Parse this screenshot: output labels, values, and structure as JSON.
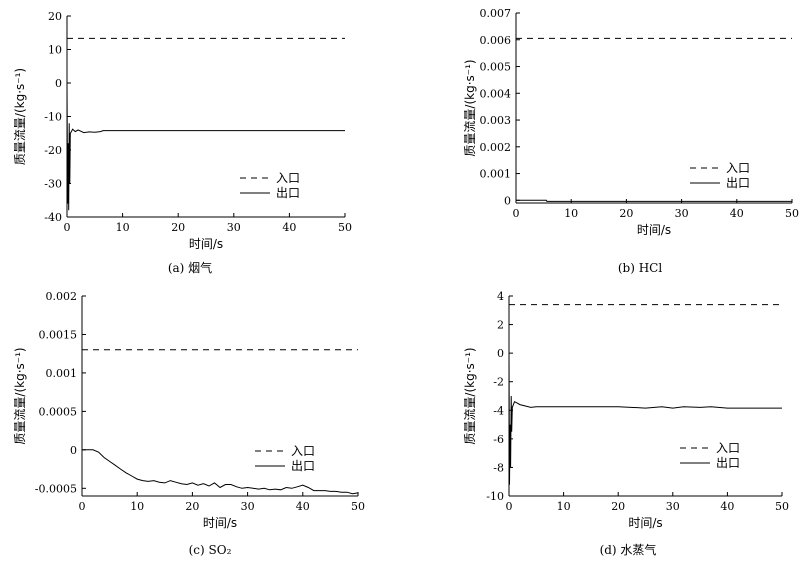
{
  "chart_data": [
    {
      "type": "line",
      "caption": "(a) 烟气",
      "xlabel": "时间/s",
      "ylabel": "质量流量/(kg·s⁻¹)",
      "xlim": [
        0,
        50
      ],
      "ylim": [
        -40,
        20
      ],
      "xticks": [
        "0",
        "10",
        "20",
        "30",
        "40",
        "50"
      ],
      "yticks": [
        "-40",
        "-30",
        "-20",
        "-10",
        "0",
        "10",
        "20"
      ],
      "legend": [
        "入口",
        "出口"
      ],
      "legend_position": "lower-right",
      "series": [
        {
          "name": "入口",
          "style": "dashed",
          "x": [
            0,
            50
          ],
          "y": [
            13.3,
            13.3
          ]
        },
        {
          "name": "出口",
          "style": "solid",
          "x": [
            0,
            0.1,
            0.2,
            0.3,
            0.4,
            0.5,
            0.6,
            0.8,
            1.0,
            1.5,
            2,
            3,
            4,
            5,
            6,
            6.5,
            10,
            20,
            30,
            40,
            50
          ],
          "y": [
            0,
            -36,
            -18,
            -38,
            -12,
            -30,
            -15,
            -14.5,
            -13.8,
            -14.5,
            -14.0,
            -14.8,
            -14.6,
            -14.7,
            -14.5,
            -14.2,
            -14.2,
            -14.2,
            -14.2,
            -14.2,
            -14.2
          ]
        }
      ]
    },
    {
      "type": "line",
      "caption": "(b) HCl",
      "xlabel": "时间/s",
      "ylabel": "质量流量/(kg·s⁻¹)",
      "xlim": [
        0,
        50
      ],
      "ylim": [
        -0.0001,
        0.007
      ],
      "xticks": [
        "0",
        "10",
        "20",
        "30",
        "40",
        "50"
      ],
      "yticks": [
        "0",
        "0.001",
        "0.002",
        "0.003",
        "0.004",
        "0.005",
        "0.006",
        "0.007"
      ],
      "legend": [
        "入口",
        "出口"
      ],
      "legend_position": "lower-right",
      "series": [
        {
          "name": "入口",
          "style": "dashed",
          "x": [
            0,
            50
          ],
          "y": [
            0.00605,
            0.00605
          ]
        },
        {
          "name": "出口",
          "style": "solid",
          "x": [
            0,
            5.5,
            5.6,
            50
          ],
          "y": [
            0.0,
            0.0,
            -4e-05,
            -4e-05
          ]
        }
      ]
    },
    {
      "type": "line",
      "caption": "(c) SO₂",
      "xlabel": "时间/s",
      "ylabel": "质量流量/(kg·s⁻¹)",
      "xlim": [
        0,
        50
      ],
      "ylim": [
        -0.0006,
        0.002
      ],
      "xticks": [
        "0",
        "10",
        "20",
        "30",
        "40",
        "50"
      ],
      "yticks": [
        "-0.0005",
        "0",
        "0.0005",
        "0.001",
        "0.0015",
        "0.002"
      ],
      "legend": [
        "入口",
        "出口"
      ],
      "legend_position": "lower-right",
      "series": [
        {
          "name": "入口",
          "style": "dashed",
          "x": [
            0,
            50
          ],
          "y": [
            0.0013,
            0.0013
          ]
        },
        {
          "name": "出口",
          "style": "solid",
          "x": [
            0,
            2,
            3,
            4,
            5,
            6,
            7,
            8,
            9,
            10,
            11,
            12,
            13,
            14,
            15,
            16,
            17,
            18,
            19,
            20,
            21,
            22,
            23,
            24,
            25,
            26,
            27,
            28,
            29,
            30,
            31,
            32,
            33,
            34,
            35,
            36,
            37,
            38,
            39,
            40,
            41,
            42,
            43,
            44,
            45,
            46,
            47,
            48,
            49,
            50
          ],
          "y": [
            0,
            0,
            -3e-05,
            -0.0001,
            -0.00015,
            -0.0002,
            -0.00025,
            -0.0003,
            -0.00034,
            -0.00038,
            -0.0004,
            -0.00041,
            -0.0004,
            -0.00042,
            -0.00043,
            -0.0004,
            -0.00042,
            -0.00044,
            -0.00045,
            -0.00043,
            -0.00046,
            -0.00044,
            -0.00047,
            -0.00043,
            -0.00049,
            -0.00045,
            -0.00045,
            -0.00048,
            -0.0005,
            -0.00049,
            -0.0005,
            -0.00051,
            -0.0005,
            -0.00052,
            -0.00051,
            -0.00052,
            -0.00049,
            -0.0005,
            -0.00048,
            -0.00046,
            -0.00049,
            -0.00053,
            -0.00053,
            -0.00053,
            -0.00054,
            -0.00054,
            -0.00055,
            -0.00055,
            -0.00057,
            -0.00056
          ]
        }
      ]
    },
    {
      "type": "line",
      "caption": "(d) 水蒸气",
      "xlabel": "时间/s",
      "ylabel": "质量流量/(kg·s⁻¹)",
      "xlim": [
        0,
        50
      ],
      "ylim": [
        -10,
        4
      ],
      "xticks": [
        "0",
        "10",
        "20",
        "30",
        "40",
        "50"
      ],
      "yticks": [
        "-10",
        "-8",
        "-6",
        "-4",
        "-2",
        "0",
        "2",
        "4"
      ],
      "legend": [
        "入口",
        "出口"
      ],
      "legend_position": "lower-right",
      "series": [
        {
          "name": "入口",
          "style": "dashed",
          "x": [
            0,
            50
          ],
          "y": [
            3.4,
            3.4
          ]
        },
        {
          "name": "出口",
          "style": "solid",
          "x": [
            0,
            0.1,
            0.2,
            0.3,
            0.4,
            0.5,
            0.6,
            0.8,
            1.0,
            1.5,
            2,
            3,
            4,
            5,
            10,
            20,
            25,
            28,
            30,
            32,
            35,
            37,
            40,
            45,
            50
          ],
          "y": [
            0,
            -9.2,
            -5.0,
            -8.0,
            -3.0,
            -5.5,
            -3.8,
            -3.6,
            -3.4,
            -3.5,
            -3.6,
            -3.7,
            -3.8,
            -3.75,
            -3.75,
            -3.75,
            -3.85,
            -3.75,
            -3.85,
            -3.75,
            -3.8,
            -3.75,
            -3.85,
            -3.85,
            -3.85
          ]
        }
      ]
    }
  ]
}
